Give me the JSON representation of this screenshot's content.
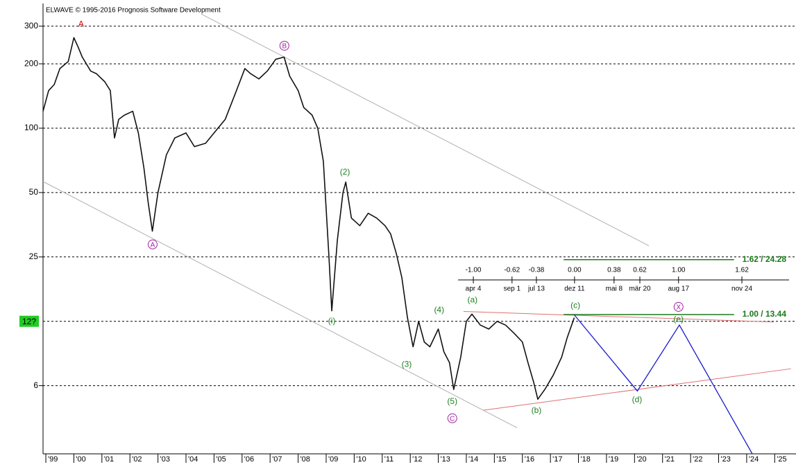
{
  "chart_data": {
    "type": "line",
    "copyright": "ELWAVE © 1995-2016 Prognosis Software Development",
    "log_y": true,
    "grid": true,
    "xlim": [
      1998.9,
      2025.76
    ],
    "ylim": [
      3.0,
      369
    ],
    "xticks": [
      {
        "value": 1999,
        "label": "'99"
      },
      {
        "value": 2000,
        "label": "'00"
      },
      {
        "value": 2001,
        "label": "'01"
      },
      {
        "value": 2002,
        "label": "'02"
      },
      {
        "value": 2003,
        "label": "'03"
      },
      {
        "value": 2004,
        "label": "'04"
      },
      {
        "value": 2005,
        "label": "'05"
      },
      {
        "value": 2006,
        "label": "'06"
      },
      {
        "value": 2007,
        "label": "'07"
      },
      {
        "value": 2008,
        "label": "'08"
      },
      {
        "value": 2009,
        "label": "'09"
      },
      {
        "value": 2010,
        "label": "'10"
      },
      {
        "value": 2011,
        "label": "'11"
      },
      {
        "value": 2012,
        "label": "'12"
      },
      {
        "value": 2013,
        "label": "'13"
      },
      {
        "value": 2014,
        "label": "'14"
      },
      {
        "value": 2015,
        "label": "'15"
      },
      {
        "value": 2016,
        "label": "'16"
      },
      {
        "value": 2017,
        "label": "'17"
      },
      {
        "value": 2018,
        "label": "'18"
      },
      {
        "value": 2019,
        "label": "'19"
      },
      {
        "value": 2020,
        "label": "'20"
      },
      {
        "value": 2021,
        "label": "'21"
      },
      {
        "value": 2022,
        "label": "'22"
      },
      {
        "value": 2023,
        "label": "'23"
      },
      {
        "value": 2024,
        "label": "'24"
      },
      {
        "value": 2025,
        "label": "'25"
      }
    ],
    "yticks": [
      300,
      200,
      100,
      50,
      25,
      {
        "value": 6.25,
        "label": "6"
      }
    ],
    "price_tag": {
      "value": 12.5,
      "label": "12?",
      "color": "#22cc22"
    },
    "color": "#111111",
    "x": [
      1998.9,
      1999.1,
      1999.3,
      1999.5,
      1999.8,
      2000.0,
      2000.15,
      2000.3,
      2000.6,
      2000.8,
      2001.1,
      2001.3,
      2001.45,
      2001.6,
      2001.8,
      2002.1,
      2002.3,
      2002.5,
      2002.65,
      2002.8,
      2003.0,
      2003.3,
      2003.6,
      2004.0,
      2004.3,
      2004.7,
      2005.0,
      2005.4,
      2005.8,
      2006.1,
      2006.3,
      2006.6,
      2006.9,
      2007.2,
      2007.5,
      2007.7,
      2008.0,
      2008.2,
      2008.5,
      2008.7,
      2008.9,
      2009.1,
      2009.2,
      2009.4,
      2009.6,
      2009.7,
      2009.9,
      2010.2,
      2010.5,
      2010.8,
      2011.1,
      2011.3,
      2011.5,
      2011.7,
      2011.9,
      2012.1,
      2012.3,
      2012.5,
      2012.7,
      2013.0,
      2013.2,
      2013.4,
      2013.55,
      2013.8,
      2014.0,
      2014.2,
      2014.5,
      2014.8,
      2015.1,
      2015.4,
      2015.7,
      2016.0,
      2016.2,
      2016.4,
      2016.55,
      2016.8,
      2017.1,
      2017.4,
      2017.6,
      2017.85
    ],
    "values": [
      120,
      150,
      160,
      190,
      205,
      265,
      240,
      215,
      185,
      180,
      165,
      150,
      90,
      110,
      115,
      120,
      95,
      65,
      45,
      33,
      50,
      75,
      90,
      95,
      82,
      85,
      95,
      110,
      150,
      190,
      180,
      170,
      185,
      210,
      215,
      175,
      150,
      125,
      115,
      100,
      70,
      25,
      14,
      30,
      50,
      56,
      38,
      35,
      40,
      38,
      35,
      32,
      26,
      20,
      13,
      9.5,
      12.5,
      10,
      9.5,
      11.5,
      9,
      8,
      6,
      8.5,
      12.5,
      13.5,
      12,
      11.5,
      12.5,
      12,
      11,
      10,
      8,
      6.5,
      5.4,
      6,
      7,
      8.5,
      10.5,
      13
    ],
    "projection": {
      "color": "#1a1acc",
      "x": [
        2017.85,
        2020.1,
        2021.6,
        2024.2
      ],
      "values": [
        13.4,
        5.9,
        12,
        3.0
      ]
    },
    "trendlines": [
      {
        "color": "#b0b0b0",
        "x": [
          2004.54,
          2020.51
        ],
        "values": [
          342,
          28.2
        ]
      },
      {
        "color": "#b0b0b0",
        "x": [
          1998.9,
          2015.81
        ],
        "values": [
          56.3,
          3.97
        ]
      },
      {
        "color": "#e07070",
        "x": [
          2013.9,
          2024.97
        ],
        "values": [
          13.9,
          12.4
        ]
      },
      {
        "color": "#e07070",
        "x": [
          2014.62,
          2025.58
        ],
        "values": [
          4.8,
          7.5
        ]
      }
    ],
    "fib_levels": [
      {
        "label": "1.62 / 24.28",
        "value": 24.28,
        "x": [
          2017.47,
          2023.55
        ],
        "color": "#1a7a1a"
      },
      {
        "label": "1.00 / 13.44",
        "value": 13.44,
        "x": [
          2017.47,
          2023.55
        ],
        "color": "#1a7a1a"
      }
    ],
    "time_ratios": [
      {
        "x": 2014.25,
        "ratio": "-1.00",
        "date": "apr 4"
      },
      {
        "x": 2015.63,
        "ratio": "-0.62",
        "date": "sep 1"
      },
      {
        "x": 2016.5,
        "ratio": "-0.38",
        "date": "jul 13"
      },
      {
        "x": 2017.86,
        "ratio": "0.00",
        "date": "dez 11"
      },
      {
        "x": 2019.27,
        "ratio": "0.38",
        "date": "mai 8"
      },
      {
        "x": 2020.19,
        "ratio": "0.62",
        "date": "mär 20"
      },
      {
        "x": 2021.57,
        "ratio": "1.00",
        "date": "aug 17"
      },
      {
        "x": 2023.83,
        "ratio": "1.62",
        "date": "nov 24"
      }
    ],
    "wave_labels": [
      {
        "text": "A",
        "x": 2000.26,
        "price": 308,
        "color": "#d00000",
        "circled": false
      },
      {
        "text": "A",
        "x": 2002.81,
        "price": 28.6,
        "color": "#a020a0",
        "circled": true
      },
      {
        "text": "B",
        "x": 2007.51,
        "price": 243,
        "color": "#a020a0",
        "circled": true
      },
      {
        "text": "(2)",
        "x": 2009.67,
        "price": 62.5,
        "color": "#208020",
        "circled": false
      },
      {
        "text": "(i)",
        "x": 2009.2,
        "price": 12.6,
        "color": "#208020",
        "circled": false
      },
      {
        "text": "(3)",
        "x": 2011.87,
        "price": 7.9,
        "color": "#208020",
        "circled": false
      },
      {
        "text": "(4)",
        "x": 2013.03,
        "price": 14.2,
        "color": "#208020",
        "circled": false
      },
      {
        "text": "(5)",
        "x": 2013.5,
        "price": 5.3,
        "color": "#208020",
        "circled": false
      },
      {
        "text": "C",
        "x": 2013.5,
        "price": 4.4,
        "color": "#a020a0",
        "circled": true
      },
      {
        "text": "(a)",
        "x": 2014.22,
        "price": 15.8,
        "color": "#208020",
        "circled": false
      },
      {
        "text": "(b)",
        "x": 2016.5,
        "price": 4.8,
        "color": "#208020",
        "circled": false
      },
      {
        "text": "(c)",
        "x": 2017.89,
        "price": 14.9,
        "color": "#208020",
        "circled": false
      },
      {
        "text": "(d)",
        "x": 2020.09,
        "price": 5.4,
        "color": "#208020",
        "circled": false
      },
      {
        "text": "X",
        "x": 2021.57,
        "price": 14.6,
        "color": "#a020a0",
        "circled": true
      },
      {
        "text": "(e)",
        "x": 2021.57,
        "price": 12.8,
        "color": "#208020",
        "circled": false
      }
    ]
  }
}
